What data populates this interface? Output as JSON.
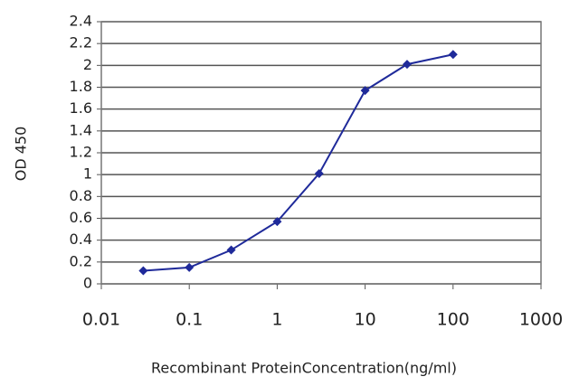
{
  "chart_data": {
    "type": "line",
    "xlabel": "Recombinant ProteinConcentration(ng/ml)",
    "ylabel": "OD 450",
    "x": [
      0.03,
      0.1,
      0.3,
      1,
      3,
      10,
      30,
      100
    ],
    "series": [
      {
        "color": "#1f2a9a",
        "values": [
          0.12,
          0.15,
          0.31,
          0.57,
          1.01,
          1.77,
          2.01,
          2.1
        ]
      }
    ],
    "xscale": "log",
    "xlim": [
      0.01,
      1000
    ],
    "xticks": [
      0.01,
      0.1,
      1,
      10,
      100,
      1000
    ],
    "ylim": [
      0,
      2.4
    ],
    "yticks": [
      0,
      0.2,
      0.4,
      0.6,
      0.8,
      1,
      1.2,
      1.4,
      1.6,
      1.8,
      2,
      2.2,
      2.4
    ],
    "grid": true
  }
}
